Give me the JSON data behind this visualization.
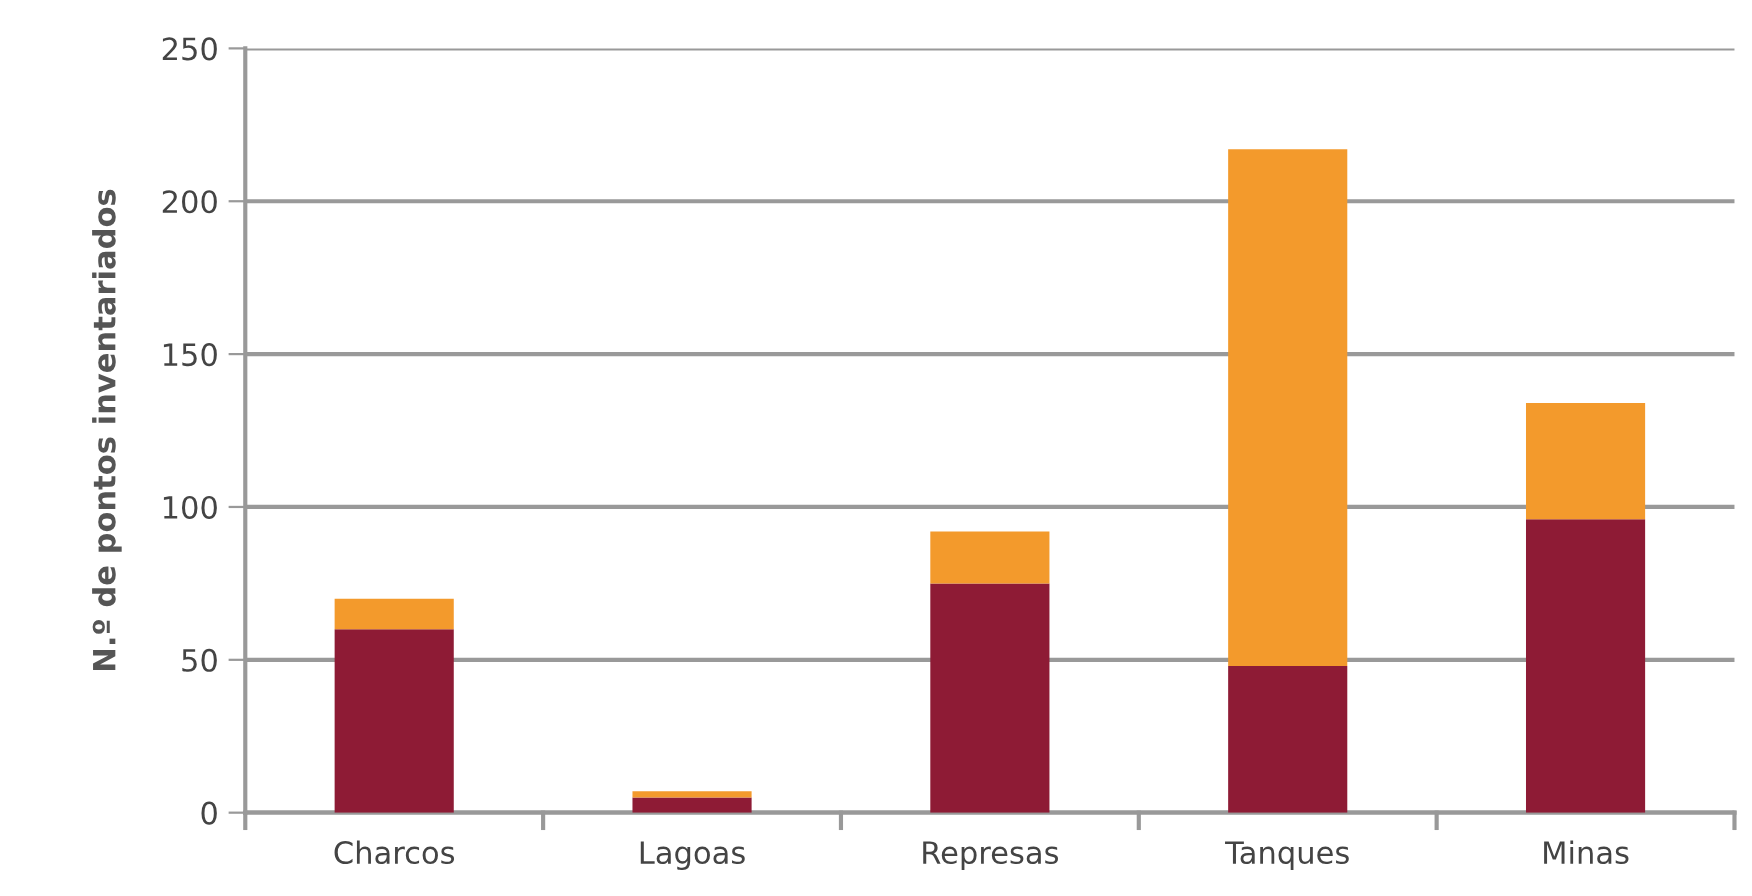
{
  "chart_data": {
    "type": "bar",
    "stacked": true,
    "ylabel": "N.º de pontos inventariados",
    "categories": [
      "Charcos",
      "Lagoas",
      "Represas",
      "Tanques",
      "Minas"
    ],
    "series": [
      {
        "color": "#8e1b35",
        "values": [
          60,
          5,
          75,
          48,
          96
        ]
      },
      {
        "color": "#f39a2c",
        "values": [
          10,
          2,
          17,
          169,
          38
        ]
      }
    ],
    "ylim": [
      0,
      250
    ],
    "yticks": [
      0,
      50,
      100,
      150,
      200,
      250
    ],
    "grid": "y",
    "legend": false
  }
}
